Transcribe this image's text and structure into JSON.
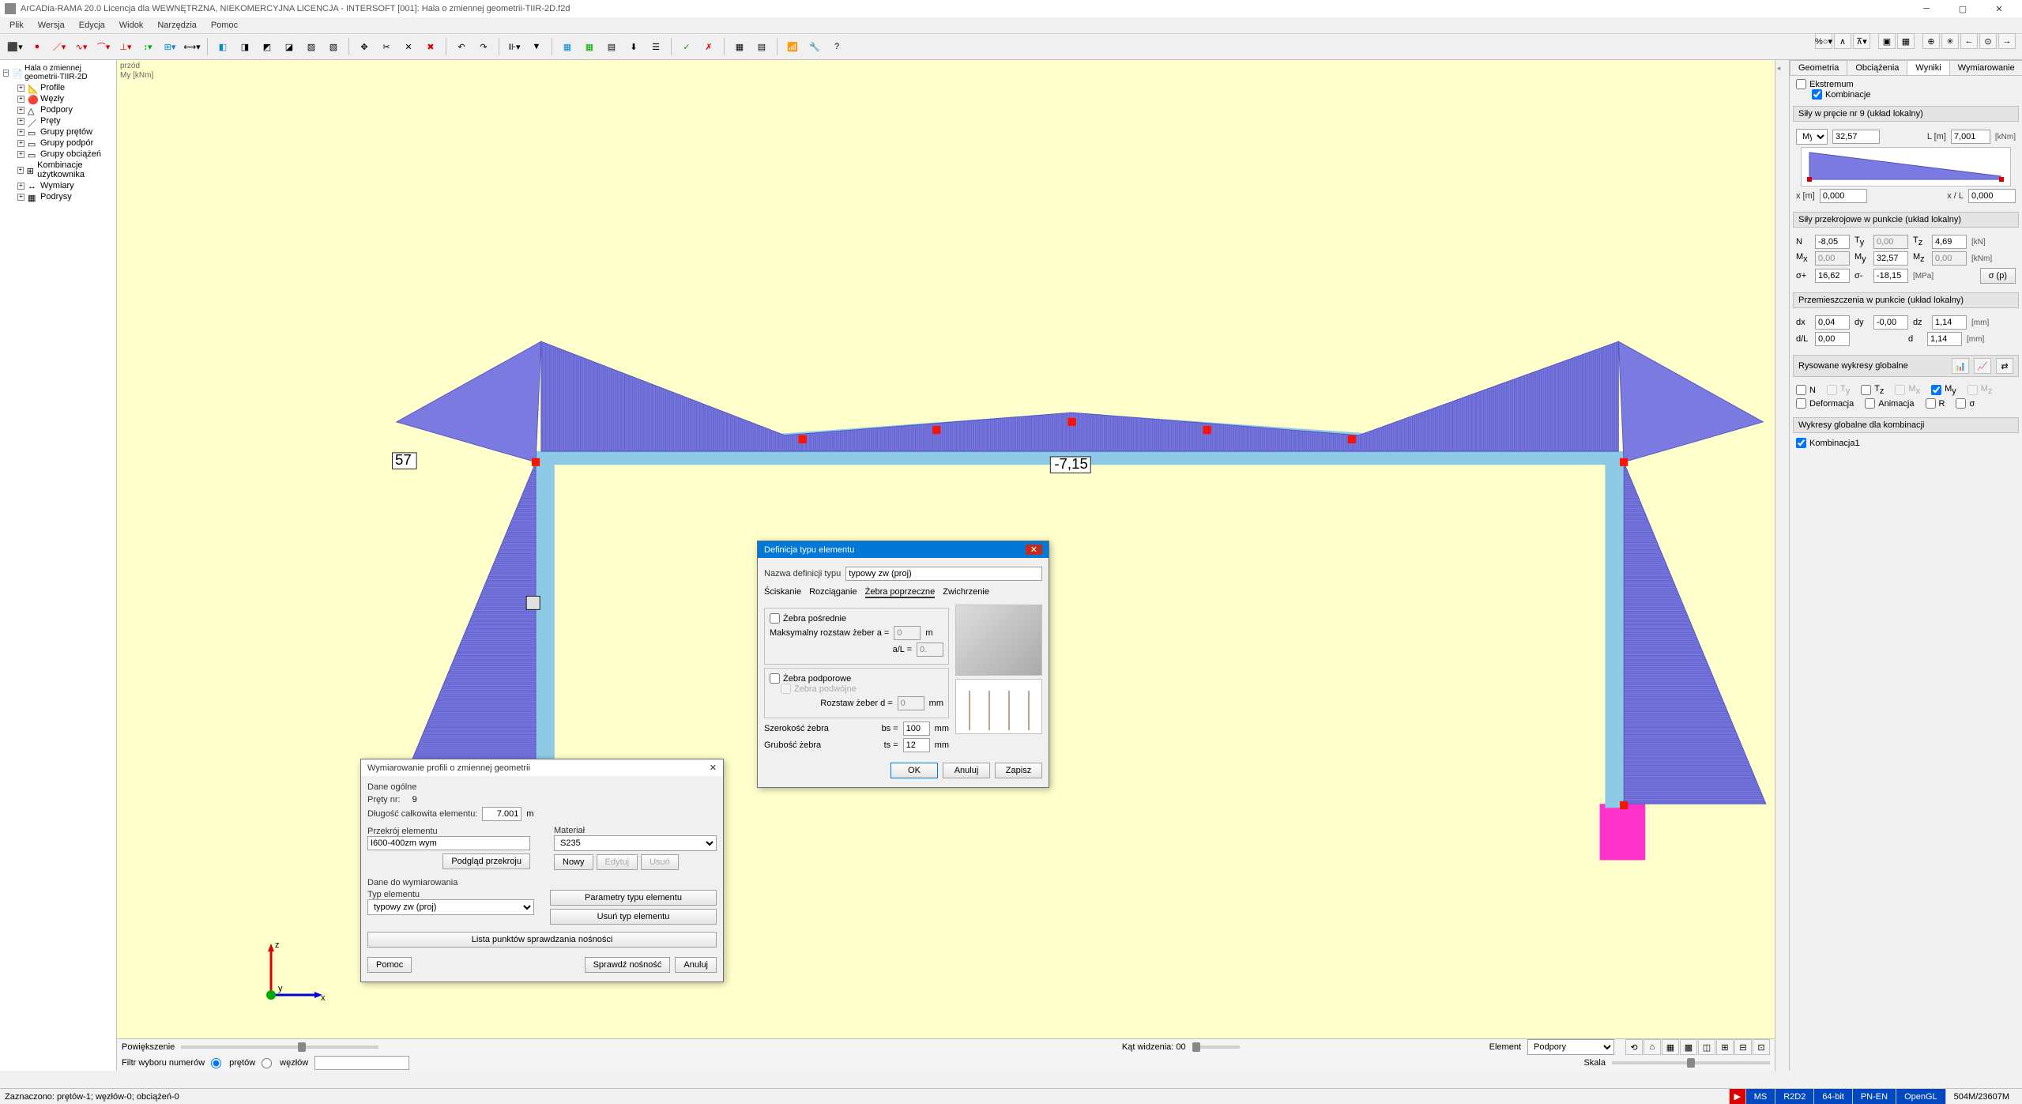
{
  "title": "ArCADia-RAMA 20.0 Licencja dla WEWNĘTRZNA, NIEKOMERCYJNA LICENCJA - INTERSOFT [001]: Hala o zmiennej geometrii-TIIR-2D.f2d",
  "menus": [
    "Plik",
    "Wersja",
    "Edycja",
    "Widok",
    "Narzędzia",
    "Pomoc"
  ],
  "tree": {
    "root": "Hala o zmiennej geometrii-TIIR-2D",
    "items": [
      "Profile",
      "Węzły",
      "Podpory",
      "Pręty",
      "Grupy prętów",
      "Grupy podpór",
      "Grupy obciążeń",
      "Kombinacje użytkownika",
      "Wymiary",
      "Podrysy"
    ]
  },
  "viewport": {
    "label_top": "przód",
    "label_sub": "My [kNm]",
    "marker_left": "57",
    "marker_mid": "-7,15",
    "chart_color": "#7a7ae0",
    "beam_color": "#8ecae6",
    "support_color": "#ff33cc",
    "node_color": "#ff1100"
  },
  "bottom": {
    "zoom_label": "Powiększenie",
    "angle_label": "Kąt widzenia: 00",
    "filter_label": "Filtr wyboru numerów",
    "filter_opts": [
      "prętów",
      "węzłów"
    ],
    "element_label": "Element",
    "element_value": "Podpory",
    "scale_label": "Skala"
  },
  "right": {
    "tabs": [
      "Geometria",
      "Obciążenia",
      "Wyniki",
      "Wymiarowanie"
    ],
    "active_tab": 2,
    "extremum": "Ekstremum",
    "kombinacje": "Kombinacje",
    "section1": "Siły w pręcie nr 9 (układ lokalny)",
    "My_value": "32,57",
    "L_label": "L [m]",
    "L_value": "7,001",
    "L_unit": "[kNm]",
    "x_label": "x [m]",
    "x_value": "0,000",
    "xL_label": "x / L",
    "xL_value": "0,000",
    "section2": "Siły przekrojowe w punkcie (układ lokalny)",
    "N": "-8,05",
    "Ty": "0,00",
    "Tz": "4,69",
    "Mx": "0,00",
    "My2": "32,57",
    "Mz": "0,00",
    "sigma_plus": "16,62",
    "sigma_minus": "-18,15",
    "kN": "[kN]",
    "kNm": "[kNm]",
    "MPa": "[MPa]",
    "sigma_btn": "σ (p)",
    "section3": "Przemieszczenia w punkcie (układ lokalny)",
    "dx": "0,04",
    "dy": "-0,00",
    "dz": "1,14",
    "dL": "0,00",
    "d": "1,14",
    "mm": "[mm]",
    "section4": "Rysowane wykresy globalne",
    "chk_N": "N",
    "chk_Ty": "Ty",
    "chk_Tz": "Tz",
    "chk_Mx": "Mx",
    "chk_My": "My",
    "chk_Mz": "Mz",
    "chk_def": "Deformacja",
    "chk_anim": "Animacja",
    "chk_R": "R",
    "chk_sigma": "σ",
    "section5": "Wykresy globalne dla kombinacji",
    "komb1": "Kombinacja1"
  },
  "dlg1": {
    "title": "Wymiarowanie profili o zmiennej geometrii",
    "general": "Dane ogólne",
    "prety_nr": "Pręty nr:",
    "prety_val": "9",
    "dlugosc": "Długość całkowita elementu:",
    "dlugosc_val": "7.001",
    "dlugosc_unit": "m",
    "przekroj": "Przekrój elementu",
    "przekroj_val": "I600-400zm wym",
    "material": "Materiał",
    "material_val": "S235",
    "podglad": "Podgląd przekroju",
    "nowy": "Nowy",
    "edytuj": "Edytuj",
    "usun": "Usuń",
    "dane_wym": "Dane do wymiarowania",
    "typ": "Typ elementu",
    "typ_val": "typowy zw (proj)",
    "param_btn": "Parametry typu elementu",
    "usun_typ": "Usuń typ elementu",
    "lista": "Lista punktów sprawdzania nośności",
    "pomoc": "Pomoc",
    "sprawdz": "Sprawdź nośność",
    "anuluj": "Anuluj"
  },
  "dlg2": {
    "title": "Definicja typu elementu",
    "nazwa": "Nazwa definicji typu",
    "nazwa_val": "typowy zw (proj)",
    "tabs": [
      "Ściskanie",
      "Rozciąganie",
      "Żebra poprzeczne",
      "Zwichrzenie"
    ],
    "zebra_pos": "Żebra pośrednie",
    "max_rozstaw": "Maksymalny rozstaw żeber a =",
    "a_val": "0",
    "a_unit": "m",
    "aL": "a/L =",
    "aL_val": "0.",
    "zebra_pod": "Żebra podporowe",
    "zebra_podw": "Żebra podwójne",
    "rozstaw_d": "Rozstaw żeber d =",
    "d_val": "0",
    "d_unit": "mm",
    "szer": "Szerokość żebra",
    "bs": "bs =",
    "bs_val": "100",
    "bs_unit": "mm",
    "grub": "Grubość żebra",
    "ts": "ts =",
    "ts_val": "12",
    "ts_unit": "mm",
    "ok": "OK",
    "anuluj": "Anuluj",
    "zapisz": "Zapisz"
  },
  "status": {
    "left": "Zaznaczono: prętów-1; węzłów-0; obciążeń-0",
    "segs": [
      "MS",
      "R2D2",
      "64-bit",
      "PN-EN",
      "OpenGL"
    ],
    "mem": "504M/23607M"
  }
}
